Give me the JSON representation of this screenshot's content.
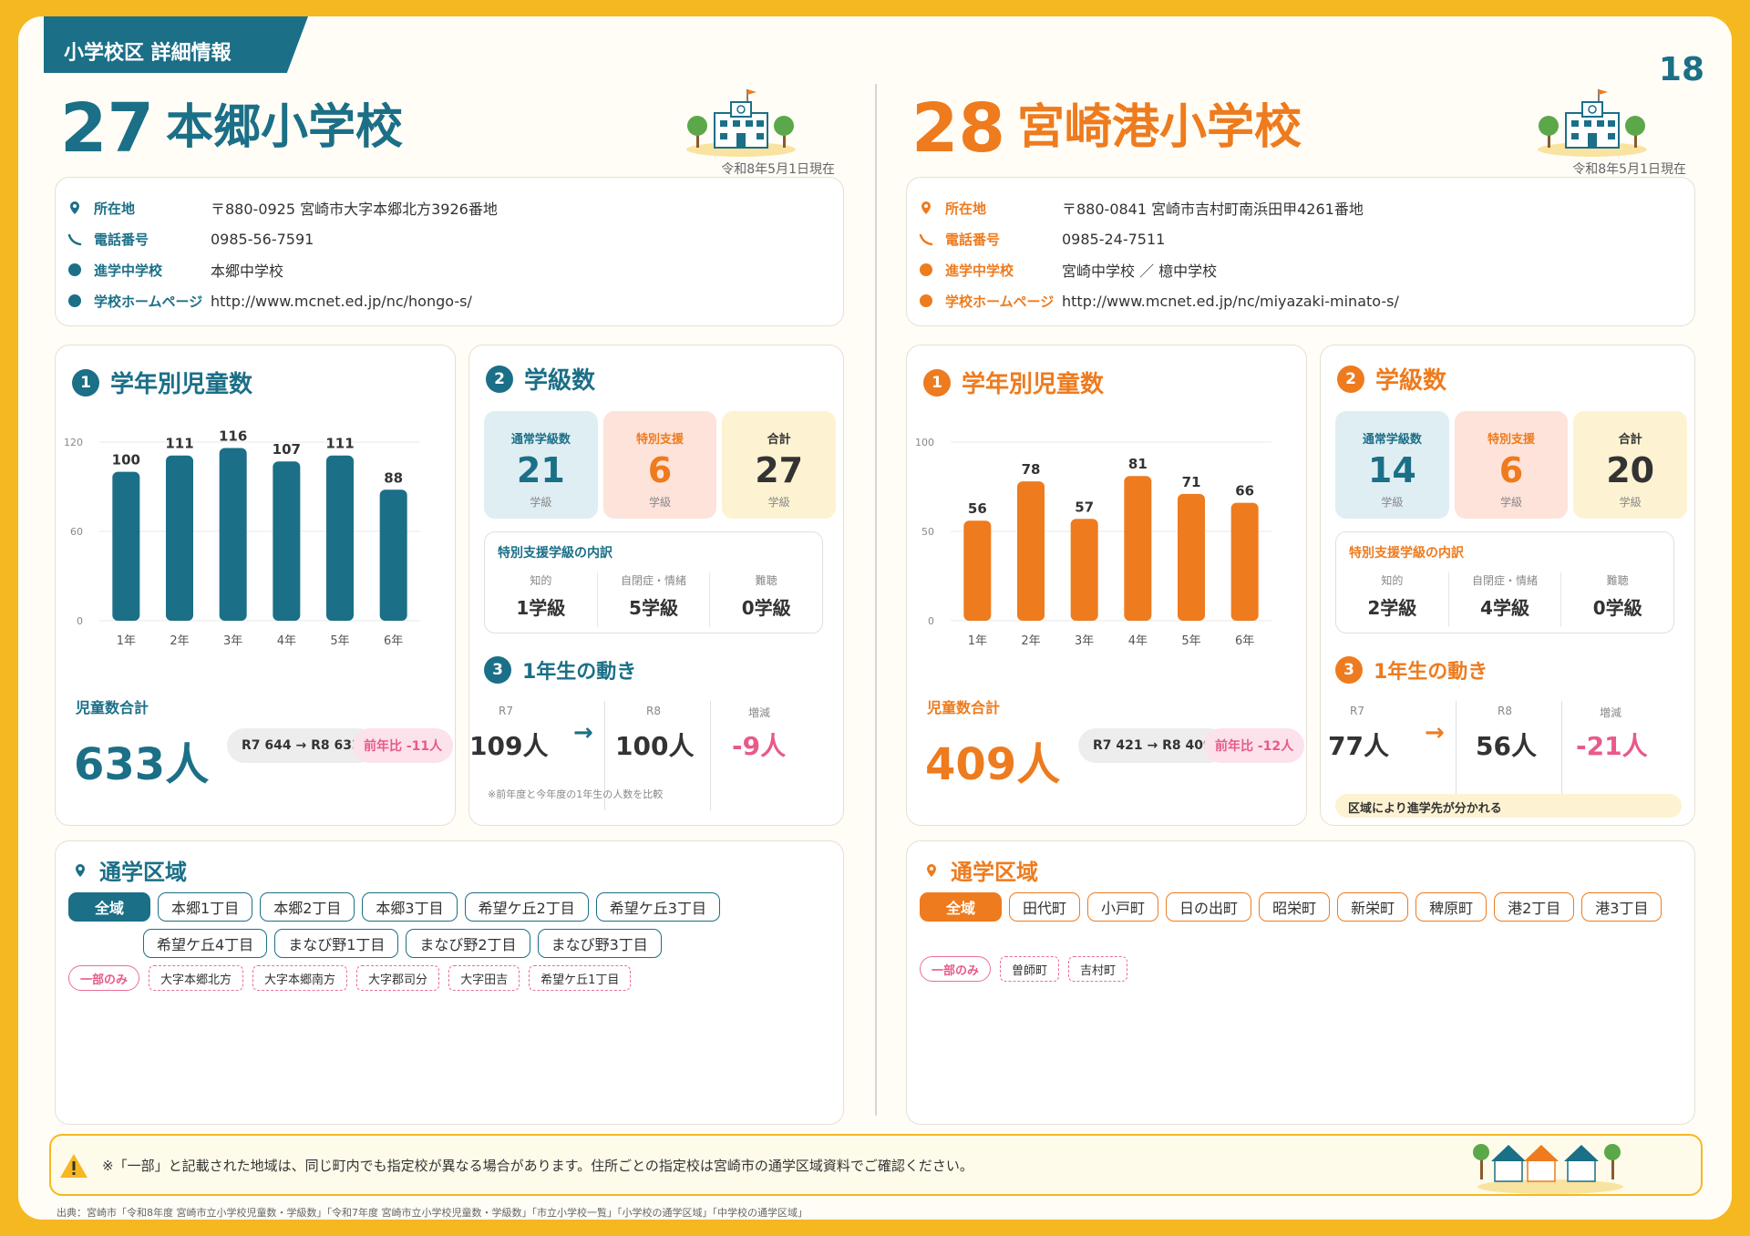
{
  "header": {
    "tag": "小学校区 詳細情報",
    "page_number": "18"
  },
  "labels": {
    "address": "所在地",
    "phone": "電話番号",
    "jhs": "進学中学校",
    "homepage": "学校ホームページ",
    "grade_title": "学年別児童数",
    "class_title": "学級数",
    "total_label": "児童数合計",
    "regular_classes": "通常学級数",
    "special_support": "特別支援",
    "sum": "合計",
    "class_unit": "学級",
    "breakdown_title": "特別支援学級の内訳",
    "bd_intellectual": "知的",
    "bd_autism": "自閉症・情緒",
    "bd_hearing": "難聴",
    "movement_title": "1年生の動き",
    "r7": "R7",
    "r8": "R8",
    "change": "増減",
    "arrow": "→",
    "district_title": "通学区域",
    "all_area": "全域",
    "partial_only": "一部のみ",
    "badge1": "1",
    "badge2": "2",
    "badge3": "3"
  },
  "schools": [
    {
      "number": "27",
      "name": "本郷小学校",
      "as_of": "令和8年5月1日現在",
      "address": "〒880-0925 宮崎市大字本郷北方3926番地",
      "phone": "0985-56-7591",
      "jhs": "本郷中学校",
      "homepage": "http://www.mcnet.ed.jp/nc/hongo-s/",
      "total": "633人",
      "change": "R7 644 → R8 633",
      "diff": "前年比 -11人",
      "regular_classes": "21",
      "special_classes": "6",
      "total_classes": "27",
      "bd_intellectual": "1学級",
      "bd_autism": "5学級",
      "bd_hearing": "0学級",
      "first_r7": "109人",
      "first_r8": "100人",
      "first_diff": "-9人",
      "movement_note": "※前年度と今年度の1年生の人数を比較",
      "movement_banner": "",
      "district_full_rows": [
        [
          "本郷1丁目",
          "本郷2丁目",
          "本郷3丁目",
          "希望ケ丘2丁目",
          "希望ケ丘3丁目"
        ],
        [
          "希望ケ丘4丁目",
          "まなび野1丁目",
          "まなび野2丁目",
          "まなび野3丁目"
        ]
      ],
      "district_partial": [
        "大字本郷北方",
        "大字本郷南方",
        "大字郡司分",
        "大字田吉",
        "希望ケ丘1丁目"
      ]
    },
    {
      "number": "28",
      "name": "宮崎港小学校",
      "as_of": "令和8年5月1日現在",
      "address": "〒880-0841 宮崎市吉村町南浜田甲4261番地",
      "phone": "0985-24-7511",
      "jhs": "宮崎中学校 ／ 檍中学校",
      "homepage": "http://www.mcnet.ed.jp/nc/miyazaki-minato-s/",
      "total": "409人",
      "change": "R7 421 → R8 409",
      "diff": "前年比 -12人",
      "regular_classes": "14",
      "special_classes": "6",
      "total_classes": "20",
      "bd_intellectual": "2学級",
      "bd_autism": "4学級",
      "bd_hearing": "0学級",
      "first_r7": "77人",
      "first_r8": "56人",
      "first_diff": "-21人",
      "movement_note": "",
      "movement_banner": "区域により進学先が分かれる",
      "district_full_rows": [
        [
          "田代町",
          "小戸町",
          "日の出町",
          "昭栄町",
          "新栄町",
          "稗原町",
          "港2丁目",
          "港3丁目"
        ]
      ],
      "district_partial": [
        "曽師町",
        "吉村町"
      ]
    }
  ],
  "footer": {
    "warning": "※「一部」と記載された地域は、同じ町内でも指定校が異なる場合があります。住所ごとの指定校は宮崎市の通学区域資料でご確認ください。",
    "source": "出典：宮崎市「令和8年度 宮崎市立小学校児童数・学級数」「令和7年度 宮崎市立小学校児童数・学級数」「市立小学校一覧」「小学校の通学区域」「中学校の通学区域」"
  },
  "colors": {
    "teal": "#1B6F87",
    "orange": "#EE7B1E",
    "pink": "#E85A8A",
    "frame": "#F5B820"
  },
  "chart_data": [
    {
      "type": "bar",
      "title": "学年別児童数",
      "categories": [
        "1年",
        "2年",
        "3年",
        "4年",
        "5年",
        "6年"
      ],
      "values": [
        100,
        111,
        116,
        107,
        111,
        88
      ],
      "yticks": [
        0,
        60,
        120
      ],
      "ylim": [
        0,
        120
      ],
      "color": "#1B6F87"
    },
    {
      "type": "bar",
      "title": "学年別児童数",
      "categories": [
        "1年",
        "2年",
        "3年",
        "4年",
        "5年",
        "6年"
      ],
      "values": [
        56,
        78,
        57,
        81,
        71,
        66
      ],
      "yticks": [
        0,
        50,
        100
      ],
      "ylim": [
        0,
        100
      ],
      "color": "#EE7B1E"
    }
  ]
}
